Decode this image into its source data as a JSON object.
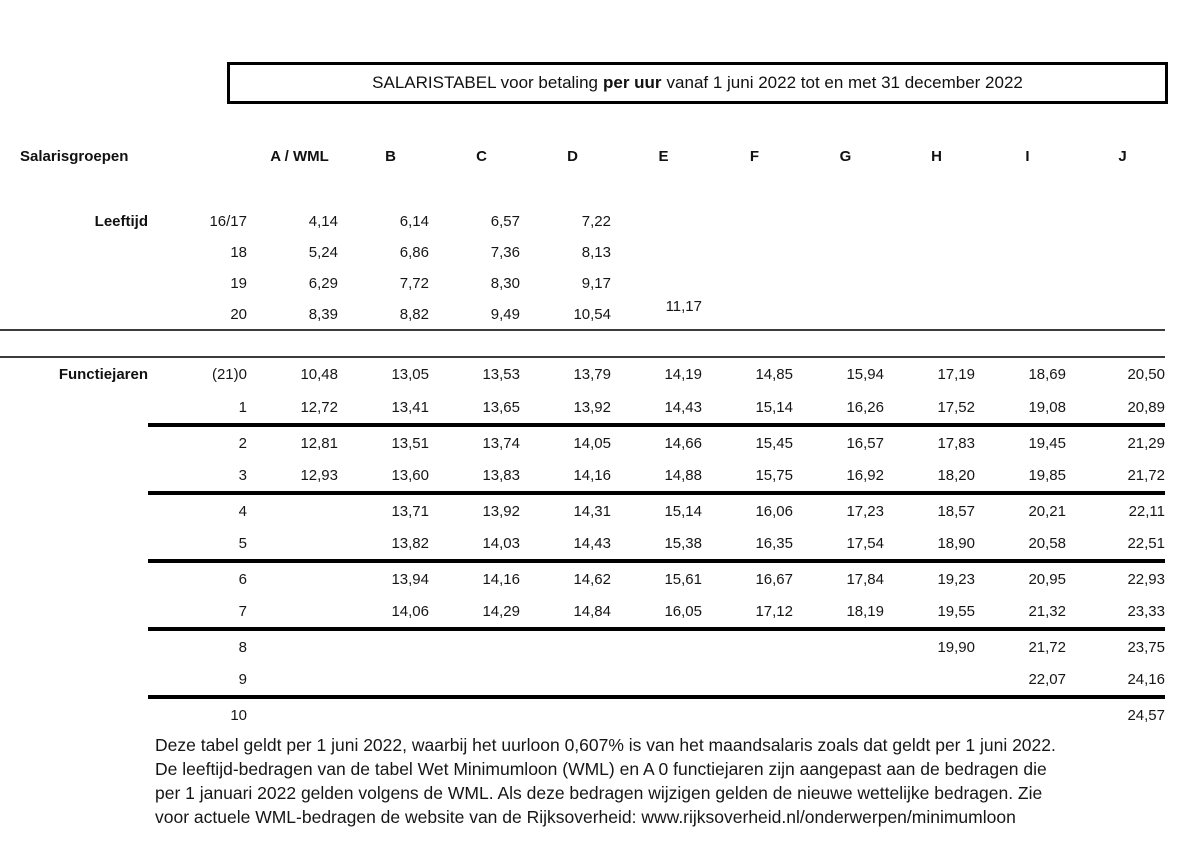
{
  "title": {
    "prefix": "SALARISTABEL voor betaling",
    "bold": "per uur",
    "suffix": "vanaf 1 juni 2022 tot en met 31 december 2022"
  },
  "table": {
    "group_header_label": "Salarisgroepen",
    "columns": [
      "A / WML",
      "B",
      "C",
      "D",
      "E",
      "F",
      "G",
      "H",
      "I",
      "J"
    ],
    "leeftijd": {
      "label": "Leeftijd",
      "rows": [
        {
          "label": "16/17",
          "values": [
            "4,14",
            "6,14",
            "6,57",
            "7,22",
            "",
            "",
            "",
            "",
            "",
            ""
          ]
        },
        {
          "label": "18",
          "values": [
            "5,24",
            "6,86",
            "7,36",
            "8,13",
            "",
            "",
            "",
            "",
            "",
            ""
          ]
        },
        {
          "label": "19",
          "values": [
            "6,29",
            "7,72",
            "8,30",
            "9,17",
            "",
            "",
            "",
            "",
            "",
            ""
          ]
        },
        {
          "label": "20",
          "values": [
            "8,39",
            "8,82",
            "9,49",
            "10,54",
            "11,17",
            "",
            "",
            "",
            "",
            ""
          ],
          "raised_col": 4
        }
      ]
    },
    "functiejaren": {
      "label": "Functiejaren",
      "rows": [
        {
          "label": "(21)0",
          "values": [
            "10,48",
            "13,05",
            "13,53",
            "13,79",
            "14,19",
            "14,85",
            "15,94",
            "17,19",
            "18,69",
            "20,50"
          ]
        },
        {
          "label": "1",
          "values": [
            "12,72",
            "13,41",
            "13,65",
            "13,92",
            "14,43",
            "15,14",
            "16,26",
            "17,52",
            "19,08",
            "20,89"
          ],
          "thick_line": true
        },
        {
          "label": "2",
          "values": [
            "12,81",
            "13,51",
            "13,74",
            "14,05",
            "14,66",
            "15,45",
            "16,57",
            "17,83",
            "19,45",
            "21,29"
          ]
        },
        {
          "label": "3",
          "values": [
            "12,93",
            "13,60",
            "13,83",
            "14,16",
            "14,88",
            "15,75",
            "16,92",
            "18,20",
            "19,85",
            "21,72"
          ],
          "thick_line": true
        },
        {
          "label": "4",
          "values": [
            "",
            "13,71",
            "13,92",
            "14,31",
            "15,14",
            "16,06",
            "17,23",
            "18,57",
            "20,21",
            "22,11"
          ]
        },
        {
          "label": "5",
          "values": [
            "",
            "13,82",
            "14,03",
            "14,43",
            "15,38",
            "16,35",
            "17,54",
            "18,90",
            "20,58",
            "22,51"
          ],
          "thick_line": true
        },
        {
          "label": "6",
          "values": [
            "",
            "13,94",
            "14,16",
            "14,62",
            "15,61",
            "16,67",
            "17,84",
            "19,23",
            "20,95",
            "22,93"
          ]
        },
        {
          "label": "7",
          "values": [
            "",
            "14,06",
            "14,29",
            "14,84",
            "16,05",
            "17,12",
            "18,19",
            "19,55",
            "21,32",
            "23,33"
          ],
          "thick_line": true
        },
        {
          "label": "8",
          "values": [
            "",
            "",
            "",
            "",
            "",
            "",
            "",
            "19,90",
            "21,72",
            "23,75"
          ]
        },
        {
          "label": "9",
          "values": [
            "",
            "",
            "",
            "",
            "",
            "",
            "",
            "",
            "22,07",
            "24,16"
          ],
          "thick_line": true
        },
        {
          "label": "10",
          "values": [
            "",
            "",
            "",
            "",
            "",
            "",
            "",
            "",
            "",
            "24,57"
          ]
        }
      ]
    }
  },
  "footer": {
    "lines": [
      "Deze tabel geldt per 1 juni 2022, waarbij het uurloon 0,607% is van het maandsalaris zoals dat geldt per 1 juni 2022.",
      "De leeftijd-bedragen van de tabel Wet Minimumloon (WML) en A 0 functiejaren zijn aangepast aan de bedragen die",
      "per 1 januari 2022 gelden volgens de WML. Als deze bedragen wijzigen gelden de nieuwe wettelijke bedragen. Zie",
      "voor actuele WML-bedragen de website van de Rijksoverheid: www.rijksoverheid.nl/onderwerpen/minimumloon"
    ]
  }
}
